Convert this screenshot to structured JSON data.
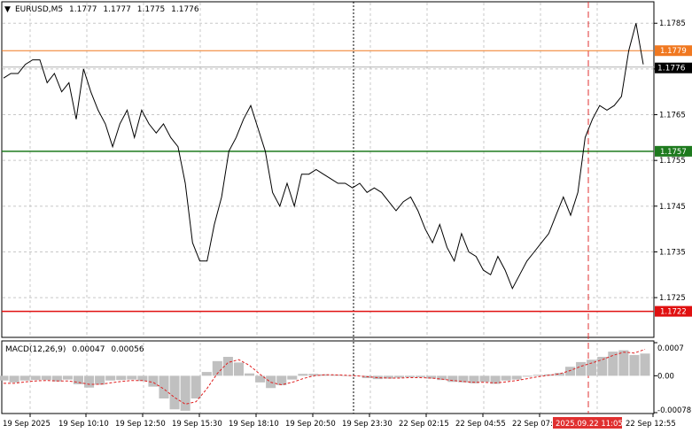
{
  "symbol_header": {
    "arrow": "▼",
    "symbol": "EURUSD,M5",
    "open": "1.1777",
    "high": "1.1777",
    "low": "1.1775",
    "close": "1.1776"
  },
  "macd_header": {
    "name": "MACD(12,26,9)",
    "main": "0.00047",
    "signal": "0.00056"
  },
  "colors": {
    "background": "#ffffff",
    "grid": "#c8c8c8",
    "price_line": "#000000",
    "level_orange": "#f07820",
    "level_green": "#1e7a1e",
    "level_red": "#e01010",
    "macd_hist": "#c0c0c0",
    "macd_signal": "#e02020",
    "current_price_label_bg": "#000000",
    "marker_line": "#e03030"
  },
  "chart_data": {
    "type": "line",
    "title": "",
    "price_axis": {
      "ylim": [
        1.17165,
        1.17895
      ],
      "ticks": [
        "1.1785",
        "1.1775",
        "1.1765",
        "1.1755",
        "1.1745",
        "1.1735",
        "1.1725"
      ]
    },
    "levels": [
      {
        "label": "1.1779",
        "value": 1.1779,
        "color": "#f07820"
      },
      {
        "label": "1.1757",
        "value": 1.1757,
        "color": "#1e7a1e"
      },
      {
        "label": "1.1722",
        "value": 1.1722,
        "color": "#e01010"
      }
    ],
    "current_price": {
      "label": "1.1776",
      "value": 1.1776
    },
    "price_series": [
      1.1773,
      1.1774,
      1.1774,
      1.1776,
      1.1777,
      1.1777,
      1.1772,
      1.1774,
      1.177,
      1.1772,
      1.1764,
      1.1775,
      1.177,
      1.1766,
      1.1763,
      1.1758,
      1.1763,
      1.1766,
      1.176,
      1.1766,
      1.1763,
      1.1761,
      1.1763,
      1.176,
      1.1758,
      1.175,
      1.1737,
      1.1733,
      1.1733,
      1.1741,
      1.1747,
      1.1757,
      1.176,
      1.1764,
      1.1767,
      1.1762,
      1.1757,
      1.1748,
      1.1745,
      1.175,
      1.1745,
      1.1752,
      1.1752,
      1.1753,
      1.1752,
      1.1751,
      1.175,
      1.175,
      1.1749,
      1.175,
      1.1748,
      1.1749,
      1.1748,
      1.1746,
      1.1744,
      1.1746,
      1.1747,
      1.1744,
      1.174,
      1.1737,
      1.1741,
      1.1736,
      1.1733,
      1.1739,
      1.1735,
      1.1734,
      1.1731,
      1.173,
      1.1734,
      1.1731,
      1.1727,
      1.173,
      1.1733,
      1.1735,
      1.1737,
      1.1739,
      1.1743,
      1.1747,
      1.1743,
      1.1748,
      1.176,
      1.1764,
      1.1767,
      1.1766,
      1.1767,
      1.1769,
      1.1779,
      1.1785,
      1.1776
    ],
    "macd": {
      "ylim": [
        -0.00078,
        0.0007
      ],
      "ticks": [
        "0.0007",
        "0.00",
        "-0.00078"
      ],
      "histogram": [
        -0.0001,
        -0.00014,
        -0.0001,
        -9e-05,
        -9e-05,
        -0.00012,
        -8e-05,
        -0.00018,
        -0.00025,
        -0.00019,
        -0.0001,
        -9e-05,
        -8e-05,
        -0.00011,
        -0.00023,
        -0.00048,
        -0.00071,
        -0.00074,
        -0.00048,
        8e-05,
        0.00031,
        0.0004,
        0.00028,
        5e-05,
        -0.00014,
        -0.00026,
        -0.0002,
        -8e-05,
        4e-05,
        4e-05,
        3e-05,
        2e-05,
        0.0,
        -1e-05,
        -5e-05,
        -7e-05,
        -6e-05,
        -4e-05,
        -3e-05,
        -3e-05,
        -6e-05,
        -9e-05,
        -0.00013,
        -0.00014,
        -0.00016,
        -0.00013,
        -0.00017,
        -0.0001,
        -8e-05,
        -2e-05,
        2e-05,
        3e-05,
        6e-05,
        0.00019,
        0.00029,
        0.00034,
        0.0004,
        0.00051,
        0.00054,
        0.00044,
        0.00047
      ],
      "signal": [
        -0.00016,
        -0.00016,
        -0.00013,
        -0.00011,
        -0.0001,
        -0.00011,
        -0.00011,
        -0.00014,
        -0.00018,
        -0.00018,
        -0.00015,
        -0.00012,
        -0.0001,
        -0.0001,
        -0.00014,
        -0.00028,
        -0.00046,
        -0.0006,
        -0.00055,
        -0.00028,
        5e-05,
        0.00028,
        0.00034,
        0.00022,
        3e-05,
        -0.00014,
        -0.00019,
        -0.00014,
        -6e-05,
        0.0,
        2e-05,
        2e-05,
        1e-05,
        0.0,
        -2e-05,
        -4e-05,
        -5e-05,
        -5e-05,
        -4e-05,
        -4e-05,
        -5e-05,
        -7e-05,
        -0.0001,
        -0.00012,
        -0.00014,
        -0.00014,
        -0.00015,
        -0.00013,
        -0.0001,
        -6e-05,
        -2e-05,
        1e-05,
        4e-05,
        0.00011,
        0.0002,
        0.00027,
        0.00034,
        0.00043,
        0.0005,
        0.00048,
        0.00056
      ]
    },
    "time_axis": {
      "labels": [
        "19 Sep 2025",
        "19 Sep 10:10",
        "19 Sep 12:50",
        "19 Sep 15:30",
        "19 Sep 18:10",
        "19 Sep 20:50",
        "19 Sep 23:30",
        "22 Sep 02:15",
        "22 Sep 04:55",
        "22 Sep 07:35",
        "22 Sep 12:55"
      ],
      "highlight_label": "2025.09.22 11:05",
      "xlabel": "",
      "ylabel": ""
    }
  }
}
